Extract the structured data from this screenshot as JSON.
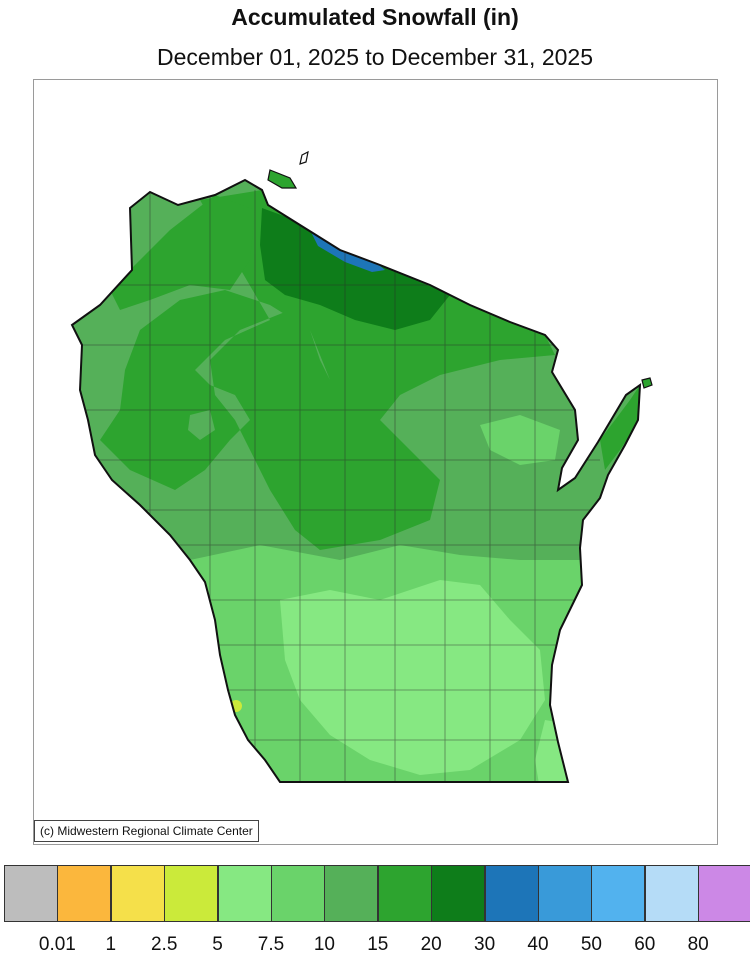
{
  "title": "Accumulated Snowfall (in)",
  "subtitle": "December 01, 2025 to December 31, 2025",
  "copyright": "(c) Midwestern Regional Climate Center",
  "legend": {
    "colors": [
      "#bdbdbd",
      "#fbb73d",
      "#f5e04a",
      "#cbea3a",
      "#86e882",
      "#6ad36a",
      "#55b059",
      "#2da42f",
      "#0e7d1a",
      "#1d75b8",
      "#399ad9",
      "#52b2ee",
      "#b5dcf7",
      "#cc88e6"
    ],
    "labels": [
      "0.01",
      "1",
      "2.5",
      "5",
      "7.5",
      "10",
      "15",
      "20",
      "30",
      "40",
      "50",
      "60",
      "80"
    ]
  },
  "map": {
    "region": "Wisconsin",
    "zone_colors": {
      "10": "#6ad36a",
      "15": "#55b059",
      "20": "#2da42f",
      "30": "#0e7d1a",
      "40": "#1d75b8",
      "7.5": "#86e882",
      "5": "#cbea3a"
    }
  }
}
